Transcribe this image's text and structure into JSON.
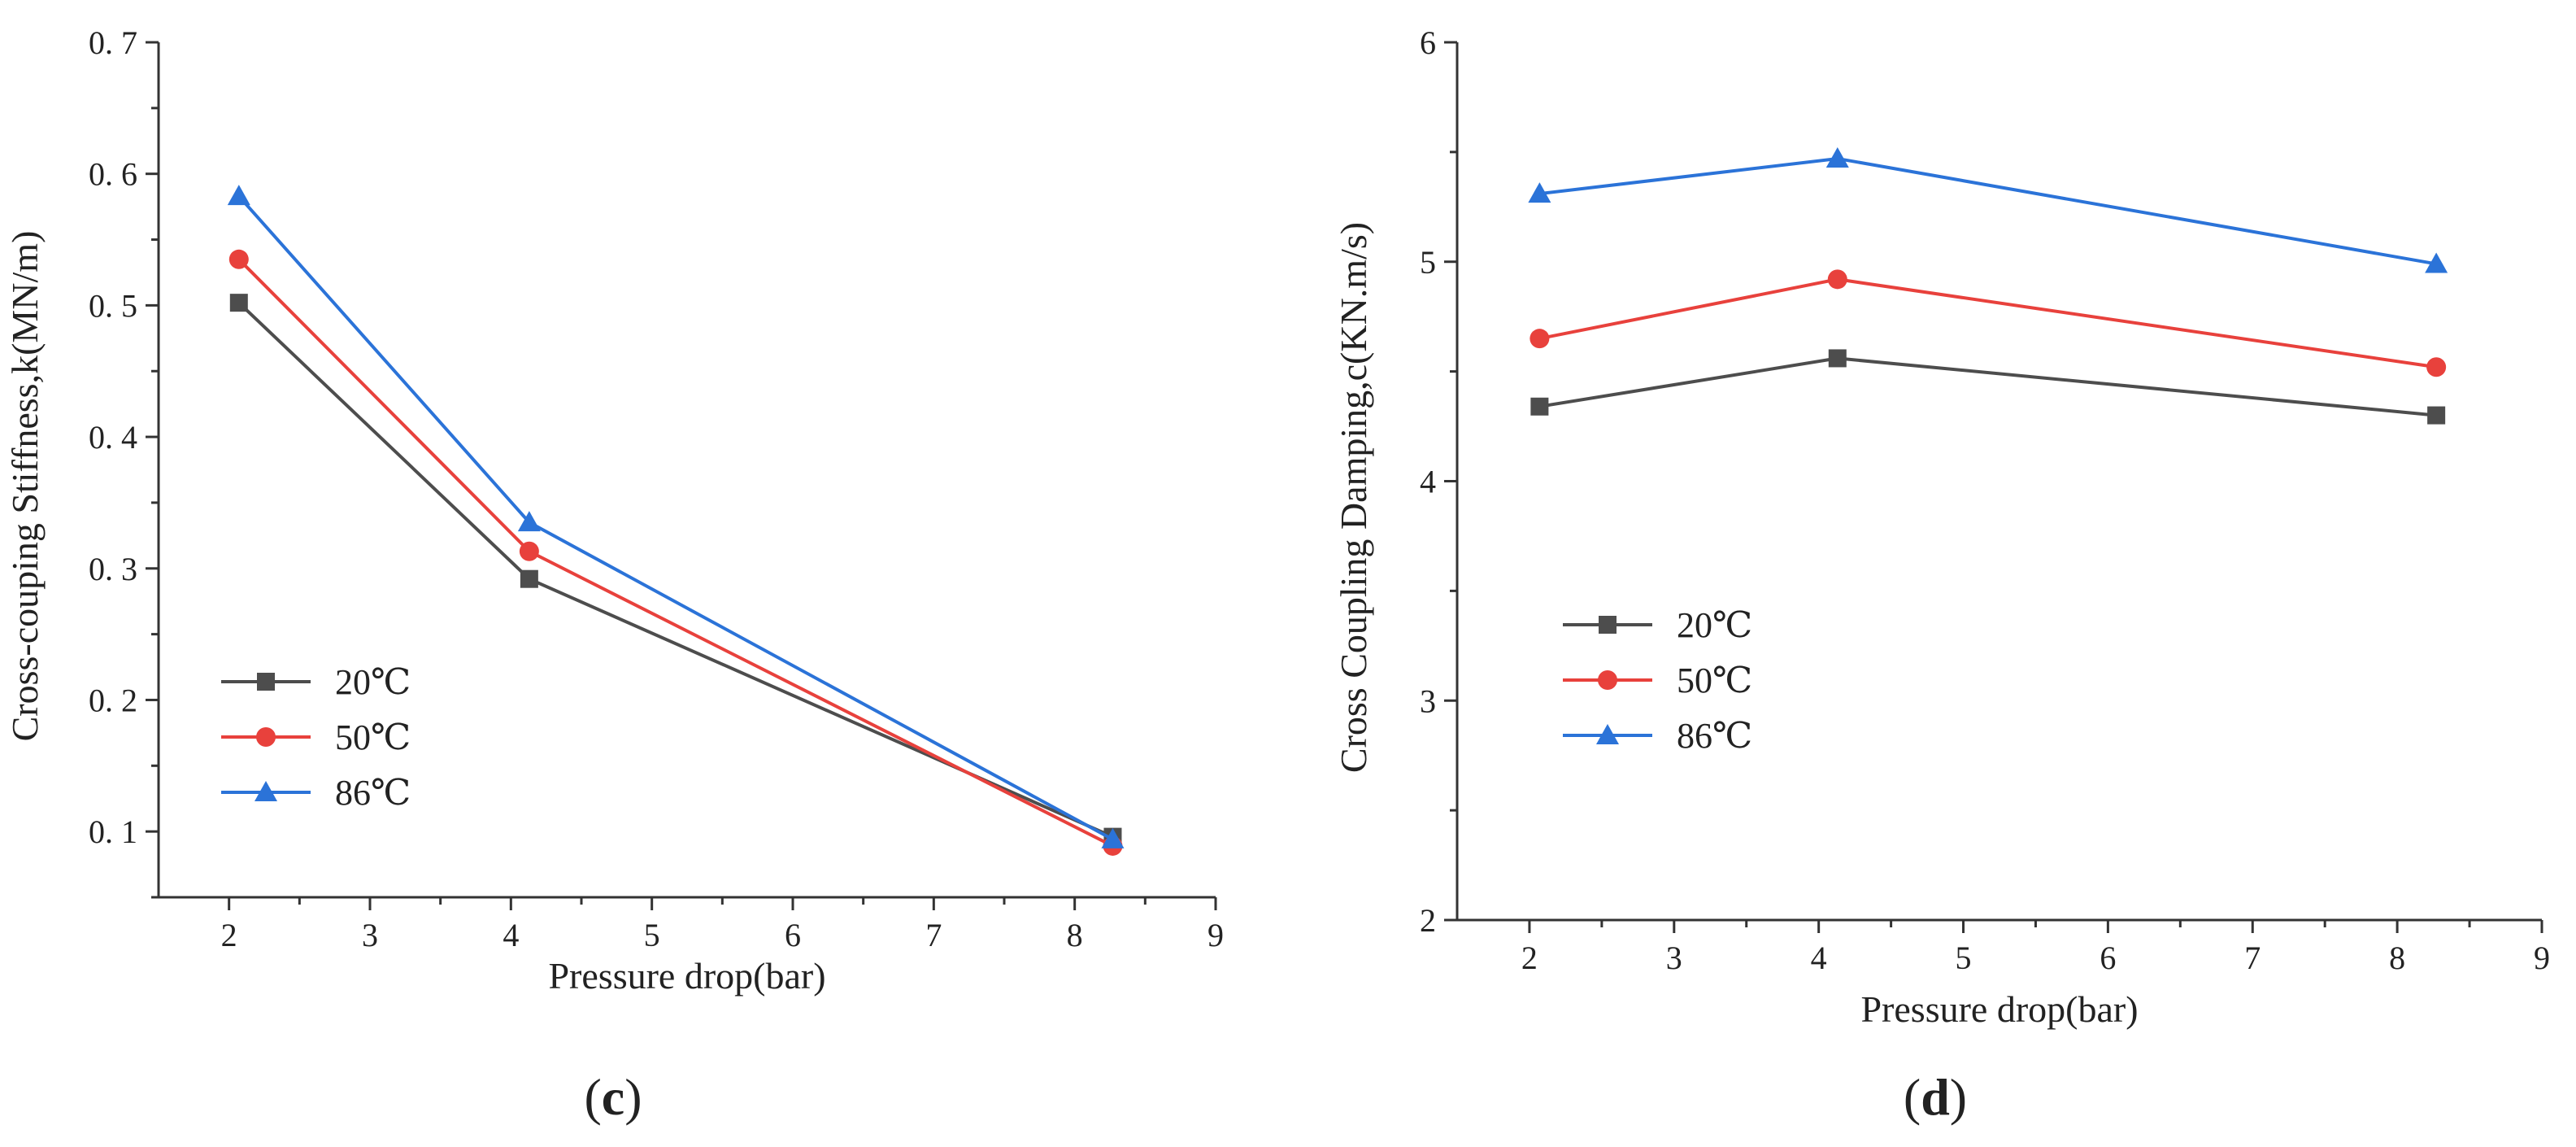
{
  "colors": {
    "s20": "#4d4d4d",
    "s50": "#e8413c",
    "s86": "#2b73d8",
    "axis": "#333333"
  },
  "panels": [
    {
      "label_open": "(",
      "label_letter": "c",
      "label_close": ")"
    },
    {
      "label_open": "(",
      "label_letter": "d",
      "label_close": ")"
    }
  ],
  "chart_data": [
    {
      "type": "line",
      "panel": "c",
      "title": "",
      "xlabel": "Pressure drop(bar)",
      "ylabel": "Cross-couping Stiffness,k(MN/m)",
      "xlim": [
        1.5,
        9
      ],
      "ylim": [
        0.05,
        0.7
      ],
      "xticks": [
        2,
        3,
        4,
        5,
        6,
        7,
        8,
        9
      ],
      "yticks": [
        0.1,
        0.2,
        0.3,
        0.4,
        0.5,
        0.6,
        0.7
      ],
      "ytick_labels": [
        "0. 1",
        "0. 2",
        "0. 3",
        "0. 4",
        "0. 5",
        "0. 6",
        "0. 7"
      ],
      "legend_position": "lower-left",
      "x": [
        2.07,
        4.13,
        8.27
      ],
      "series": [
        {
          "name": "20℃",
          "marker": "square",
          "color_key": "s20",
          "values": [
            0.502,
            0.292,
            0.096
          ]
        },
        {
          "name": "50℃",
          "marker": "circle",
          "color_key": "s50",
          "values": [
            0.535,
            0.313,
            0.089
          ]
        },
        {
          "name": "86℃",
          "marker": "triangle",
          "color_key": "s86",
          "values": [
            0.583,
            0.335,
            0.094
          ]
        }
      ]
    },
    {
      "type": "line",
      "panel": "d",
      "title": "",
      "xlabel": "Pressure drop(bar)",
      "ylabel": "Cross Coupling Damping,c(KN.m/s)",
      "xlim": [
        1.5,
        9
      ],
      "ylim": [
        2,
        6
      ],
      "xticks": [
        2,
        3,
        4,
        5,
        6,
        7,
        8,
        9
      ],
      "yticks": [
        2,
        3,
        4,
        5,
        6
      ],
      "ytick_labels": [
        "2",
        "3",
        "4",
        "5",
        "6"
      ],
      "legend_position": "middle-left",
      "x": [
        2.07,
        4.13,
        8.27
      ],
      "series": [
        {
          "name": "20℃",
          "marker": "square",
          "color_key": "s20",
          "values": [
            4.34,
            4.56,
            4.3
          ]
        },
        {
          "name": "50℃",
          "marker": "circle",
          "color_key": "s50",
          "values": [
            4.65,
            4.92,
            4.52
          ]
        },
        {
          "name": "86℃",
          "marker": "triangle",
          "color_key": "s86",
          "values": [
            5.31,
            5.47,
            4.99
          ]
        }
      ]
    }
  ]
}
